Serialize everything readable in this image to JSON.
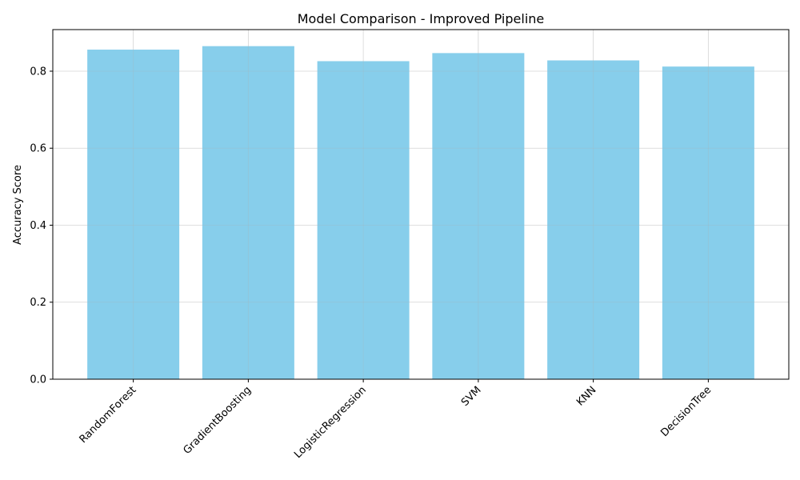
{
  "chart_data": {
    "type": "bar",
    "title": "Model Comparison - Improved Pipeline",
    "xlabel": "",
    "ylabel": "Accuracy Score",
    "categories": [
      "RandomForest",
      "GradientBoosting",
      "LogisticRegression",
      "SVM",
      "KNN",
      "DecisionTree"
    ],
    "values": [
      0.856,
      0.865,
      0.826,
      0.847,
      0.828,
      0.812
    ],
    "ylim": [
      0,
      0.908
    ],
    "yticks": [
      0.0,
      0.2,
      0.4,
      0.6,
      0.8
    ],
    "ytick_labels": [
      "0.0",
      "0.2",
      "0.4",
      "0.6",
      "0.8"
    ],
    "bar_color": "#87ceeb",
    "grid": true,
    "xtick_rotation": 45
  }
}
